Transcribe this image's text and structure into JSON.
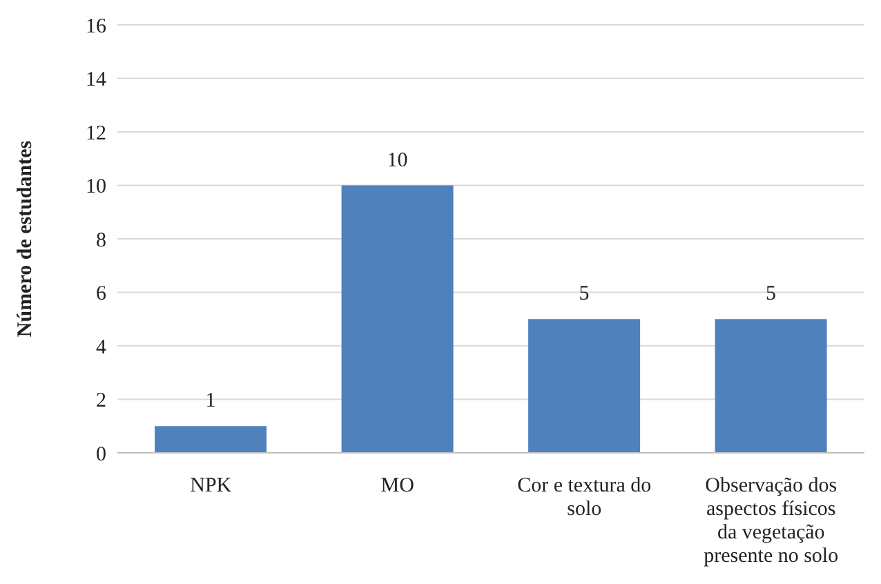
{
  "chart_data": {
    "type": "bar",
    "ylabel": "Número de estudantes",
    "categories": [
      "NPK",
      "MO",
      "Cor e textura do solo",
      "Observação dos aspectos físicos da vegetação presente no solo"
    ],
    "values": [
      1,
      10,
      5,
      5
    ],
    "color": "#4f81bd",
    "ylim": [
      0,
      16
    ],
    "yticks": [
      0,
      2,
      4,
      6,
      8,
      10,
      12,
      14,
      16
    ],
    "grid": "y",
    "data_labels": true,
    "legend": false
  }
}
